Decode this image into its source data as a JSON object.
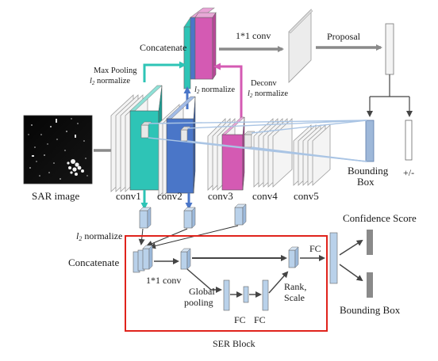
{
  "labels": {
    "concatenate_top": "Concatenate",
    "conv_1x1_top": "1*1 conv",
    "proposal": "Proposal",
    "max_pooling": "Max Pooling",
    "l2_normalize": "l",
    "l2_sub": "2",
    "normalize": " normalize",
    "deconv": "Deconv",
    "sar_image": "SAR image",
    "conv1": "conv1",
    "conv2": "conv2",
    "conv3": "conv3",
    "conv4": "conv4",
    "conv5": "conv5",
    "bounding_box_top_1": "Bounding",
    "bounding_box_top_2": "Box",
    "plus_minus": "+/-",
    "confidence_score": "Confidence Score",
    "concatenate_ser": "Concatenate",
    "conv_1x1_ser": "1*1 conv",
    "global_pooling_1": "Global",
    "global_pooling_2": "pooling",
    "fc_a": "FC",
    "fc_b": "FC",
    "rank_1": "Rank,",
    "rank_2": "Scale",
    "fc_c": "FC",
    "bounding_box_bottom": "Bounding Box",
    "ser_block": "SER Block"
  },
  "colors": {
    "teal": "#2ec4b6",
    "blue": "#4a76c8",
    "magenta": "#d45ab3",
    "arrow_gray": "#888888",
    "light_blue": "#b9d1ea",
    "ser_border": "#e0231c"
  }
}
